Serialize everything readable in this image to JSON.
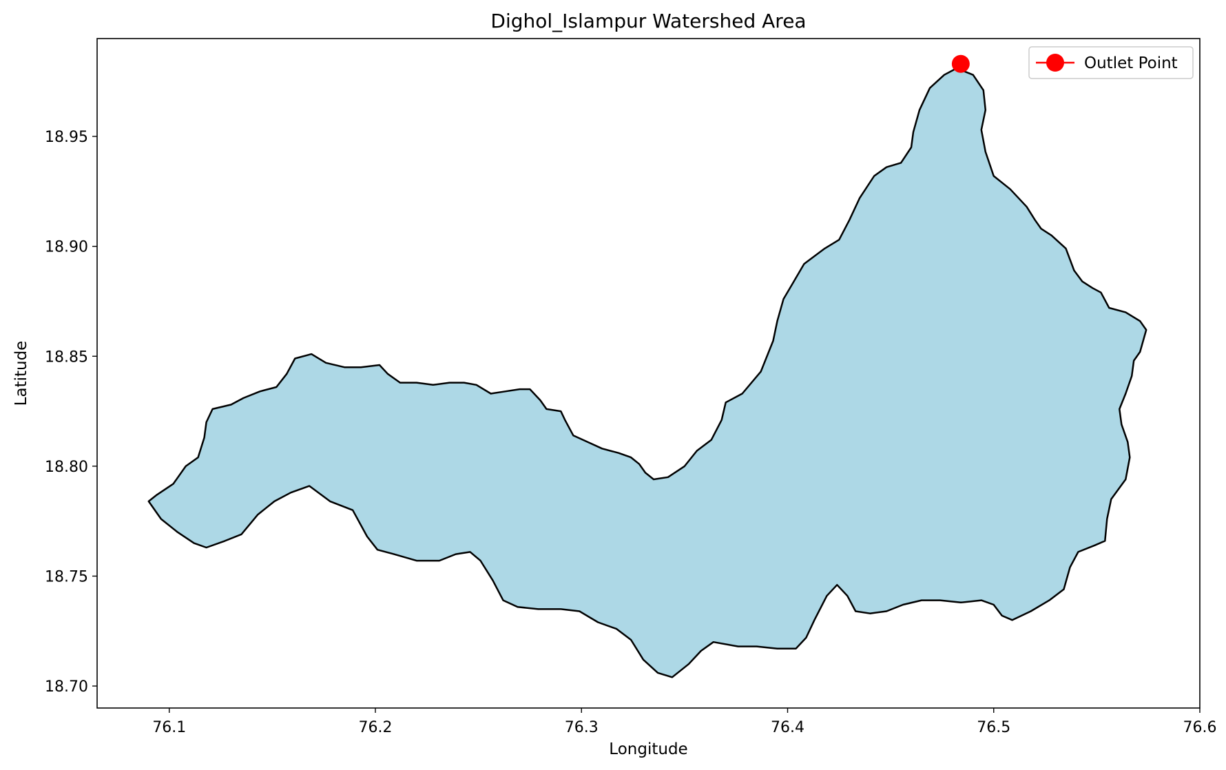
{
  "chart_data": {
    "type": "map",
    "title": "Dighol_Islampur Watershed Area",
    "xlabel": "Longitude",
    "ylabel": "Latitude",
    "xlim": [
      76.065,
      76.6
    ],
    "ylim": [
      18.69,
      18.9945
    ],
    "xticks": [
      76.1,
      76.2,
      76.3,
      76.4,
      76.5,
      76.6
    ],
    "xtick_labels": [
      "76.1",
      "76.2",
      "76.3",
      "76.4",
      "76.5",
      "76.6"
    ],
    "yticks": [
      18.7,
      18.75,
      18.8,
      18.85,
      18.9,
      18.95
    ],
    "ytick_labels": [
      "18.70",
      "18.75",
      "18.80",
      "18.85",
      "18.90",
      "18.95"
    ],
    "grid": false,
    "legend_position": "top-right",
    "watershed": {
      "fill": "#add8e6",
      "edge": "#000000",
      "boundary": [
        [
          76.09,
          18.784
        ],
        [
          76.094,
          18.787
        ],
        [
          76.102,
          18.792
        ],
        [
          76.108,
          18.8
        ],
        [
          76.114,
          18.804
        ],
        [
          76.117,
          18.813
        ],
        [
          76.118,
          18.82
        ],
        [
          76.121,
          18.826
        ],
        [
          76.13,
          18.828
        ],
        [
          76.136,
          18.831
        ],
        [
          76.144,
          18.834
        ],
        [
          76.152,
          18.836
        ],
        [
          76.157,
          18.842
        ],
        [
          76.161,
          18.849
        ],
        [
          76.169,
          18.851
        ],
        [
          76.176,
          18.847
        ],
        [
          76.185,
          18.845
        ],
        [
          76.193,
          18.845
        ],
        [
          76.202,
          18.846
        ],
        [
          76.206,
          18.842
        ],
        [
          76.212,
          18.838
        ],
        [
          76.22,
          18.838
        ],
        [
          76.228,
          18.837
        ],
        [
          76.236,
          18.838
        ],
        [
          76.243,
          18.838
        ],
        [
          76.249,
          18.837
        ],
        [
          76.256,
          18.833
        ],
        [
          76.263,
          18.834
        ],
        [
          76.27,
          18.835
        ],
        [
          76.275,
          18.835
        ],
        [
          76.28,
          18.83
        ],
        [
          76.283,
          18.826
        ],
        [
          76.29,
          18.825
        ],
        [
          76.292,
          18.821
        ],
        [
          76.296,
          18.814
        ],
        [
          76.303,
          18.811
        ],
        [
          76.31,
          18.808
        ],
        [
          76.318,
          18.806
        ],
        [
          76.324,
          18.804
        ],
        [
          76.328,
          18.801
        ],
        [
          76.331,
          18.797
        ],
        [
          76.335,
          18.794
        ],
        [
          76.342,
          18.795
        ],
        [
          76.35,
          18.8
        ],
        [
          76.356,
          18.807
        ],
        [
          76.363,
          18.812
        ],
        [
          76.368,
          18.821
        ],
        [
          76.37,
          18.829
        ],
        [
          76.378,
          18.833
        ],
        [
          76.387,
          18.843
        ],
        [
          76.393,
          18.857
        ],
        [
          76.395,
          18.866
        ],
        [
          76.398,
          18.876
        ],
        [
          76.403,
          18.884
        ],
        [
          76.408,
          18.892
        ],
        [
          76.418,
          18.899
        ],
        [
          76.425,
          18.903
        ],
        [
          76.43,
          18.912
        ],
        [
          76.435,
          18.922
        ],
        [
          76.442,
          18.932
        ],
        [
          76.448,
          18.936
        ],
        [
          76.455,
          18.938
        ],
        [
          76.46,
          18.945
        ],
        [
          76.461,
          18.952
        ],
        [
          76.464,
          18.962
        ],
        [
          76.469,
          18.972
        ],
        [
          76.476,
          18.978
        ],
        [
          76.482,
          18.981
        ],
        [
          76.49,
          18.978
        ],
        [
          76.495,
          18.971
        ],
        [
          76.496,
          18.962
        ],
        [
          76.494,
          18.953
        ],
        [
          76.496,
          18.943
        ],
        [
          76.5,
          18.932
        ],
        [
          76.508,
          18.926
        ],
        [
          76.516,
          18.918
        ],
        [
          76.52,
          18.912
        ],
        [
          76.523,
          18.908
        ],
        [
          76.528,
          18.905
        ],
        [
          76.535,
          18.899
        ],
        [
          76.539,
          18.889
        ],
        [
          76.543,
          18.884
        ],
        [
          76.548,
          18.881
        ],
        [
          76.552,
          18.879
        ],
        [
          76.556,
          18.872
        ],
        [
          76.564,
          18.87
        ],
        [
          76.571,
          18.866
        ],
        [
          76.574,
          18.862
        ],
        [
          76.571,
          18.852
        ],
        [
          76.568,
          18.848
        ],
        [
          76.567,
          18.841
        ],
        [
          76.564,
          18.833
        ],
        [
          76.561,
          18.826
        ],
        [
          76.562,
          18.819
        ],
        [
          76.565,
          18.811
        ],
        [
          76.566,
          18.804
        ],
        [
          76.564,
          18.794
        ],
        [
          76.557,
          18.785
        ],
        [
          76.555,
          18.776
        ],
        [
          76.554,
          18.766
        ],
        [
          76.549,
          18.764
        ],
        [
          76.541,
          18.761
        ],
        [
          76.537,
          18.754
        ],
        [
          76.534,
          18.744
        ],
        [
          76.527,
          18.739
        ],
        [
          76.518,
          18.734
        ],
        [
          76.509,
          18.73
        ],
        [
          76.504,
          18.732
        ],
        [
          76.5,
          18.737
        ],
        [
          76.494,
          18.739
        ],
        [
          76.484,
          18.738
        ],
        [
          76.474,
          18.739
        ],
        [
          76.465,
          18.739
        ],
        [
          76.456,
          18.737
        ],
        [
          76.448,
          18.734
        ],
        [
          76.44,
          18.733
        ],
        [
          76.433,
          18.734
        ],
        [
          76.429,
          18.741
        ],
        [
          76.424,
          18.746
        ],
        [
          76.419,
          18.741
        ],
        [
          76.413,
          18.73
        ],
        [
          76.409,
          18.722
        ],
        [
          76.404,
          18.717
        ],
        [
          76.395,
          18.717
        ],
        [
          76.385,
          18.718
        ],
        [
          76.376,
          18.718
        ],
        [
          76.364,
          18.72
        ],
        [
          76.358,
          18.716
        ],
        [
          76.352,
          18.71
        ],
        [
          76.344,
          18.704
        ],
        [
          76.337,
          18.706
        ],
        [
          76.33,
          18.712
        ],
        [
          76.324,
          18.721
        ],
        [
          76.317,
          18.726
        ],
        [
          76.308,
          18.729
        ],
        [
          76.299,
          18.734
        ],
        [
          76.29,
          18.735
        ],
        [
          76.279,
          18.735
        ],
        [
          76.269,
          18.736
        ],
        [
          76.262,
          18.739
        ],
        [
          76.257,
          18.748
        ],
        [
          76.251,
          18.757
        ],
        [
          76.246,
          18.761
        ],
        [
          76.239,
          18.76
        ],
        [
          76.231,
          18.757
        ],
        [
          76.22,
          18.757
        ],
        [
          76.209,
          18.76
        ],
        [
          76.201,
          18.762
        ],
        [
          76.196,
          18.768
        ],
        [
          76.189,
          18.78
        ],
        [
          76.178,
          18.784
        ],
        [
          76.168,
          18.791
        ],
        [
          76.159,
          18.788
        ],
        [
          76.151,
          18.784
        ],
        [
          76.143,
          18.778
        ],
        [
          76.135,
          18.769
        ],
        [
          76.127,
          18.766
        ],
        [
          76.118,
          18.763
        ],
        [
          76.112,
          18.765
        ],
        [
          76.104,
          18.77
        ],
        [
          76.096,
          18.776
        ],
        [
          76.09,
          18.784
        ]
      ]
    },
    "series": [
      {
        "name": "Outlet Point",
        "type": "marker",
        "color": "#ff0000",
        "x": [
          76.484
        ],
        "y": [
          18.983
        ]
      }
    ]
  }
}
